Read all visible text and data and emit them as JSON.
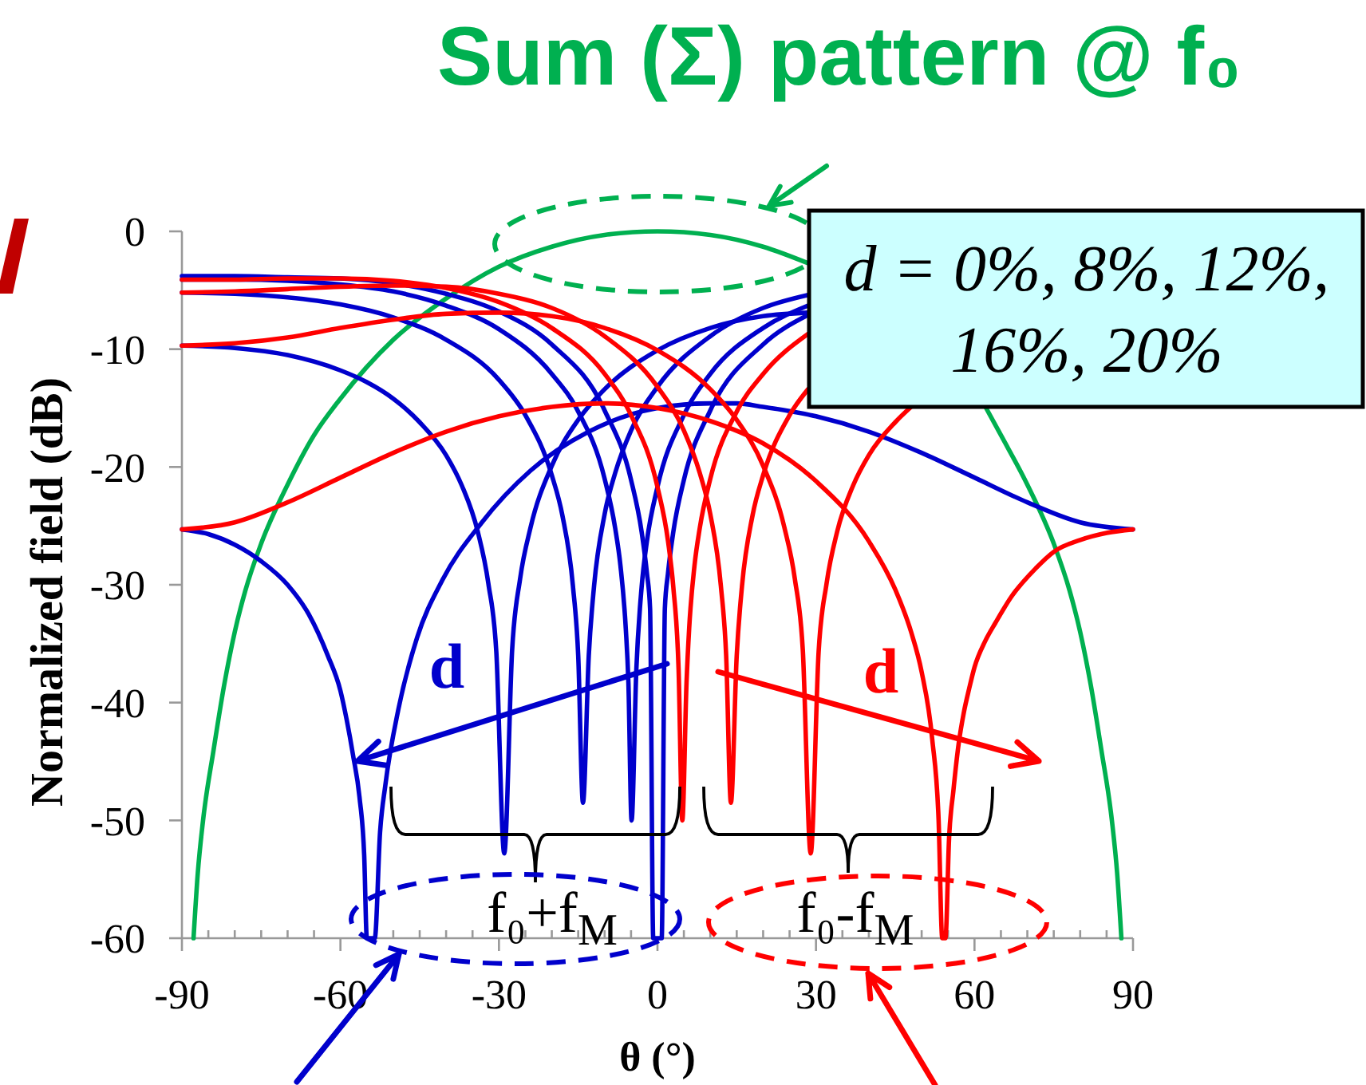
{
  "chart_data": {
    "type": "line",
    "xlabel": "θ (°)",
    "ylabel": "Normalized field (dB)",
    "xlim": [
      -90,
      90
    ],
    "xticks": [
      -90,
      {
        "value": -85,
        "label": null
      },
      {
        "value": -80,
        "label": null
      },
      {
        "value": -75,
        "label": null
      },
      {
        "value": -70,
        "label": null
      },
      {
        "value": -65,
        "label": null
      },
      -60,
      {
        "value": -55,
        "label": null
      },
      {
        "value": -50,
        "label": null
      },
      {
        "value": -45,
        "label": null
      },
      {
        "value": -40,
        "label": null
      },
      {
        "value": -35,
        "label": null
      },
      -30,
      {
        "value": -25,
        "label": null
      },
      {
        "value": -20,
        "label": null
      },
      {
        "value": -15,
        "label": null
      },
      {
        "value": -10,
        "label": null
      },
      {
        "value": -5,
        "label": null
      },
      0,
      {
        "value": 5,
        "label": null
      },
      {
        "value": 10,
        "label": null
      },
      {
        "value": 15,
        "label": null
      },
      {
        "value": 20,
        "label": null
      },
      {
        "value": 25,
        "label": null
      },
      30,
      {
        "value": 35,
        "label": null
      },
      {
        "value": 40,
        "label": null
      },
      {
        "value": 45,
        "label": null
      },
      {
        "value": 50,
        "label": null
      },
      {
        "value": 55,
        "label": null
      },
      60,
      {
        "value": 65,
        "label": null
      },
      {
        "value": 70,
        "label": null
      },
      {
        "value": 75,
        "label": null
      },
      {
        "value": 80,
        "label": null
      },
      {
        "value": 85,
        "label": null
      },
      90
    ],
    "ylim": [
      -60,
      0
    ],
    "yticks": [
      -60,
      -50,
      -40,
      -30,
      -20,
      -10,
      0
    ],
    "series": [
      {
        "color": "#00b050",
        "x": [
          -87.8,
          -87,
          -86,
          -84,
          -82,
          -80,
          -78,
          -75,
          -70,
          -65,
          -60,
          -50,
          -40,
          -30,
          -20,
          -10,
          0,
          10,
          20,
          28.5,
          45,
          62.2,
          65,
          70,
          75,
          78,
          80,
          82,
          84,
          86,
          87,
          87.8
        ],
        "values": [
          -60,
          -54.5,
          -50,
          -44,
          -38.5,
          -34,
          -30.5,
          -26.5,
          -21.5,
          -17.3,
          -14.2,
          -9.2,
          -5.7,
          -3,
          -1.3,
          -0.3,
          0,
          -0.3,
          -1.3,
          -2.7,
          null,
          -15,
          -17.3,
          -21.5,
          -26.5,
          -30.5,
          -34,
          -38.5,
          -44,
          -50,
          -54.5,
          -60
        ]
      },
      {
        "color": "#0000cc",
        "x": [
          -90,
          -80,
          -70,
          -60,
          -50,
          -40,
          -30,
          -20,
          -10,
          -5,
          -3,
          -2,
          -1.4,
          -0.8,
          0.8,
          1.4,
          2,
          3,
          5,
          10,
          20,
          28.5
        ],
        "values": [
          -3.8,
          -3.8,
          -3.9,
          -4,
          -4.4,
          -5.3,
          -6.8,
          -9.6,
          -15.2,
          -21.1,
          -25.5,
          -29,
          -32,
          -60,
          -60,
          -32,
          -29,
          -25.5,
          -21.1,
          -15.2,
          -9.6,
          -7.1
        ]
      },
      {
        "color": "#0000cc",
        "x": [
          -90,
          -80,
          -70,
          -60,
          -50,
          -40,
          -30,
          -20,
          -15,
          -10,
          -8,
          -7,
          -6,
          -5.5,
          -4.9,
          -4,
          -3,
          -2,
          0,
          5,
          10,
          20,
          28.5
        ],
        "values": [
          -4.1,
          -4.1,
          -4.2,
          -4.5,
          -5.1,
          -6.3,
          -8.3,
          -12.1,
          -15.3,
          -21,
          -25.2,
          -28.4,
          -33.7,
          -38.3,
          -50,
          -37.2,
          -30.2,
          -26.3,
          -21.7,
          -15.6,
          -12.1,
          -8.2,
          -6.3
        ]
      },
      {
        "color": "#0000cc",
        "x": [
          -90,
          -80,
          -70,
          -60,
          -50,
          -40,
          -30,
          -25,
          -20,
          -18,
          -16,
          -15,
          -14.1,
          -13,
          -12,
          -10,
          -8,
          -5,
          0,
          10,
          20,
          28.5
        ],
        "values": [
          -5.2,
          -5.3,
          -5.6,
          -6.2,
          -7.3,
          -9.2,
          -12.6,
          -15.6,
          -20.7,
          -24.1,
          -30.1,
          -36,
          -48.5,
          -36,
          -30.1,
          -24,
          -20.5,
          -16.9,
          -13.2,
          -8.9,
          -6.5,
          -5.4
        ]
      },
      {
        "color": "#0000cc",
        "x": [
          -90,
          -80,
          -70,
          -60,
          -55,
          -50,
          -45,
          -40,
          -37,
          -34,
          -32,
          -30.5,
          -29,
          -27.5,
          -26,
          -24,
          -20,
          -15,
          -10,
          0,
          10,
          20,
          28.5
        ],
        "values": [
          -9.7,
          -9.9,
          -10.5,
          -11.8,
          -12.8,
          -14.2,
          -16.2,
          -19,
          -21.6,
          -25.5,
          -29.9,
          -35.7,
          -52.8,
          -35.5,
          -29.5,
          -25.1,
          -19.9,
          -16,
          -13.4,
          -10.1,
          -8.2,
          -7.2,
          -6.9
        ]
      },
      {
        "color": "#0000cc",
        "x": [
          -90,
          -85,
          -80,
          -75,
          -70,
          -66,
          -62.4,
          -60,
          -58.8,
          -57.6,
          -56.4,
          -55.5,
          -55,
          -53.5,
          -52.5,
          -51.5,
          -49,
          -45.5,
          -40.7,
          -33.4,
          -24,
          -13,
          0,
          10,
          15,
          20,
          30,
          40,
          50,
          60,
          70,
          80,
          90
        ],
        "values": [
          -25.3,
          -25.7,
          -26.6,
          -28,
          -30,
          -32.5,
          -36,
          -39,
          -41.5,
          -44.5,
          -48,
          -53,
          -60,
          -60,
          -51,
          -47,
          -40.5,
          -34.5,
          -29.6,
          -24.8,
          -20.3,
          -17,
          -15,
          -14.6,
          -14.6,
          -14.9,
          -15.7,
          -17,
          -18.8,
          -20.9,
          -23,
          -24.7,
          -25.3
        ]
      },
      {
        "color": "#ff0000",
        "x": [
          -90,
          -80,
          -70,
          -60,
          -50,
          -40,
          -30,
          -20,
          -10,
          -5,
          0,
          2,
          3,
          4,
          4.7,
          5.5,
          6,
          7,
          8,
          10,
          15,
          20,
          28.5
        ],
        "values": [
          -4.1,
          -4.1,
          -4,
          -4,
          -4.2,
          -4.8,
          -6,
          -8.2,
          -12.1,
          -15.6,
          -21.7,
          -26.3,
          -30.2,
          -37.2,
          -50,
          -38.3,
          -33.7,
          -28.4,
          -25.2,
          -21,
          -15.3,
          -12.1,
          -8.7
        ]
      },
      {
        "color": "#ff0000",
        "x": [
          -90,
          -80,
          -70,
          -60,
          -50,
          -40,
          -30,
          -20,
          -10,
          0,
          5,
          8,
          10,
          12,
          13,
          13.9,
          15,
          16,
          18,
          20,
          25,
          28.5
        ],
        "values": [
          -5.2,
          -5.1,
          -4.9,
          -4.7,
          -4.6,
          -4.7,
          -5.3,
          -6.5,
          -8.9,
          -13.2,
          -16.9,
          -20.5,
          -24,
          -30.1,
          -36,
          -48.5,
          -36,
          -30.1,
          -24.1,
          -20.7,
          -15.6,
          -13.4
        ]
      },
      {
        "color": "#ff0000",
        "x": [
          -90,
          -80,
          -70,
          -60,
          -50,
          -40,
          -30,
          -20,
          -10,
          0,
          10,
          15,
          20,
          24,
          26,
          27.5,
          29,
          30.5,
          32,
          34,
          37,
          40,
          45,
          48
        ],
        "values": [
          -9.7,
          -9.5,
          -9,
          -8.2,
          -7.5,
          -7,
          -6.9,
          -7.2,
          -8.2,
          -10.1,
          -13.4,
          -16,
          -19.9,
          -25.1,
          -29.5,
          -35.5,
          -52.8,
          -35.7,
          -29.9,
          -25.5,
          -21.6,
          -19,
          -16.2,
          -14.9
        ]
      },
      {
        "color": "#ff0000",
        "x": [
          -90,
          -80,
          -70,
          -60,
          -50,
          -40,
          -30,
          -20,
          -10,
          0,
          10,
          20,
          30,
          40,
          45,
          48,
          50,
          52,
          53.2,
          53.9,
          54.5,
          55.2,
          56,
          57,
          58,
          59,
          60,
          62,
          64,
          67,
          71.6,
          75,
          80,
          85,
          90
        ],
        "values": [
          -25.3,
          -24.7,
          -23,
          -20.9,
          -18.8,
          -17,
          -15.7,
          -14.9,
          -14.6,
          -15,
          -16.1,
          -18,
          -21.2,
          -26.3,
          -30.4,
          -34,
          -37.4,
          -43.1,
          -49.9,
          -60,
          -60,
          -51.4,
          -47.5,
          -43.5,
          -40.8,
          -38.8,
          -37,
          -34.8,
          -33.2,
          -31,
          -28.6,
          -27.2,
          -26.2,
          -25.6,
          -25.3
        ]
      }
    ],
    "annotations": [
      "Sum (Σ) pattern @ f₀",
      "d = 0%, 8%, 12%, 16%, 20%",
      "d",
      "d",
      "f₀+f$_{M}$",
      "f₀-f$_{M}$"
    ]
  }
}
